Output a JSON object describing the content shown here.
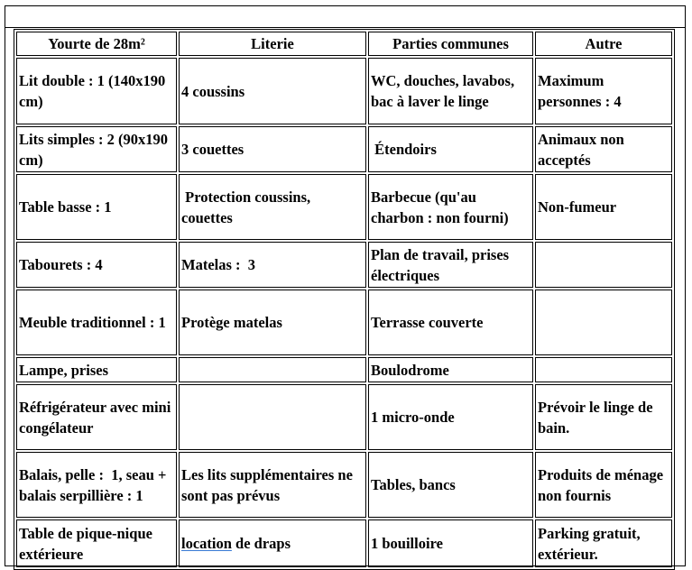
{
  "table": {
    "headers": [
      "Yourte de 28m²",
      "Literie",
      "Parties communes",
      "Autre"
    ],
    "rows": [
      [
        "Lit double : 1 (140x190 cm)",
        "4 coussins",
        "WC, douches, lavabos, bac à laver le linge",
        "Maximum personnes : 4"
      ],
      [
        "Lits simples : 2 (90x190 cm)",
        "3 couettes",
        " Étendoirs",
        "Animaux non acceptés"
      ],
      [
        "Table basse : 1",
        " Protection coussins, couettes",
        "Barbecue (qu'au charbon : non fourni)",
        "Non-fumeur"
      ],
      [
        "Tabourets : 4",
        "Matelas :  3",
        "Plan de travail, prises électriques",
        ""
      ],
      [
        "Meuble traditionnel : 1",
        "Protège matelas",
        "Terrasse couverte",
        ""
      ],
      [
        "Lampe, prises",
        "",
        "Boulodrome",
        ""
      ],
      [
        "Réfrigérateur avec mini congélateur",
        "",
        "1 micro-onde",
        "Prévoir le linge de bain."
      ],
      [
        "Balais, pelle :  1, seau + balais serpillière : 1",
        "Les lits supplémentaires ne sont pas prévus",
        "Tables, bancs",
        "Produits de ménage non fournis"
      ],
      [
        "Table de pique-nique extérieure",
        "",
        "1 bouilloire",
        "Parking gratuit, extérieur."
      ]
    ],
    "last_row_literie": {
      "misspelled_word": "location",
      "rest": " de draps"
    }
  }
}
